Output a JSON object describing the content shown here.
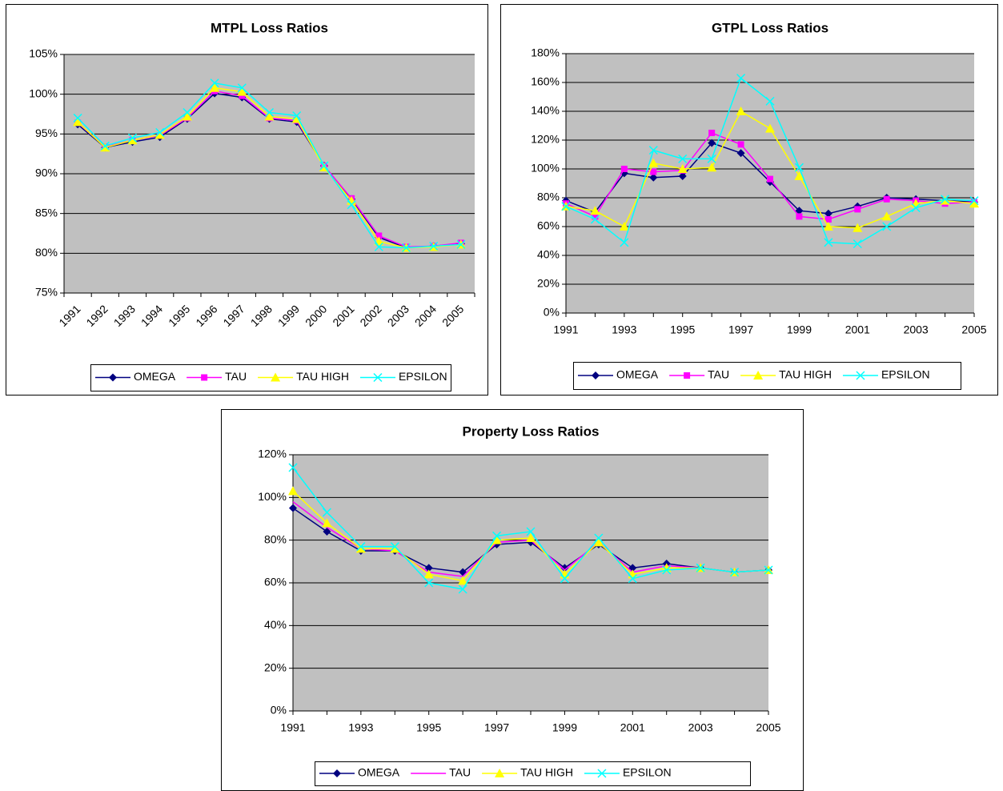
{
  "chart_data": [
    {
      "type": "line",
      "title": "MTPL Loss Ratios",
      "categories": [
        "1991",
        "1992",
        "1993",
        "1994",
        "1995",
        "1996",
        "1997",
        "1998",
        "1999",
        "2000",
        "2001",
        "2002",
        "2003",
        "2004",
        "2005"
      ],
      "ylim": [
        75,
        105
      ],
      "yticks": [
        {
          "value": 75,
          "label": "75%"
        },
        {
          "value": 80,
          "label": "80%"
        },
        {
          "value": 85,
          "label": "85%"
        },
        {
          "value": 90,
          "label": "90%"
        },
        {
          "value": 95,
          "label": "95%"
        },
        {
          "value": 100,
          "label": "100%"
        },
        {
          "value": 105,
          "label": "105%"
        }
      ],
      "grid": true,
      "legend": "bottom",
      "series": [
        {
          "name": "OMEGA",
          "color": "#000080",
          "marker": "diamond",
          "values": [
            96.2,
            93.3,
            94.0,
            94.6,
            96.9,
            100.1,
            99.6,
            96.9,
            96.5,
            91.0,
            86.8,
            82.0,
            80.7,
            80.9,
            81.2
          ]
        },
        {
          "name": "TAU",
          "color": "#ff00ff",
          "marker": "square",
          "values": [
            96.4,
            93.4,
            94.2,
            94.8,
            97.0,
            100.4,
            99.8,
            97.0,
            96.7,
            91.0,
            86.9,
            82.2,
            80.8,
            80.9,
            81.3
          ]
        },
        {
          "name": "TAU HIGH",
          "color": "#ffff00",
          "marker": "triangle",
          "values": [
            96.5,
            93.3,
            94.2,
            94.9,
            97.2,
            100.8,
            100.3,
            97.2,
            96.9,
            90.8,
            86.6,
            81.5,
            80.7,
            80.8,
            81.1
          ]
        },
        {
          "name": "EPSILON",
          "color": "#00ffff",
          "marker": "x",
          "values": [
            97.0,
            93.5,
            94.5,
            95.2,
            97.7,
            101.4,
            100.8,
            97.7,
            97.3,
            91.0,
            86.1,
            80.8,
            80.7,
            80.9,
            81.1
          ]
        }
      ]
    },
    {
      "type": "line",
      "title": "GTPL Loss Ratios",
      "x": [
        1991,
        1992,
        1993,
        1994,
        1995,
        1996,
        1997,
        1998,
        1999,
        2000,
        2001,
        2002,
        2003,
        2004,
        2005
      ],
      "xlim": [
        1991,
        2005
      ],
      "xticks": [
        1991,
        1993,
        1995,
        1997,
        1999,
        2001,
        2003,
        2005
      ],
      "ylim": [
        0,
        180
      ],
      "yticks": [
        {
          "value": 0,
          "label": "0%"
        },
        {
          "value": 20,
          "label": "20%"
        },
        {
          "value": 40,
          "label": "40%"
        },
        {
          "value": 60,
          "label": "60%"
        },
        {
          "value": 80,
          "label": "80%"
        },
        {
          "value": 100,
          "label": "100%"
        },
        {
          "value": 120,
          "label": "120%"
        },
        {
          "value": 140,
          "label": "140%"
        },
        {
          "value": 160,
          "label": "160%"
        },
        {
          "value": 180,
          "label": "180%"
        }
      ],
      "grid": true,
      "legend": "bottom",
      "series": [
        {
          "name": "OMEGA",
          "color": "#000080",
          "marker": "diamond",
          "values": [
            78,
            70,
            97,
            94,
            95,
            118,
            111,
            91,
            71,
            69,
            74,
            80,
            79,
            78,
            77
          ]
        },
        {
          "name": "TAU",
          "color": "#ff00ff",
          "marker": "square",
          "values": [
            76,
            67,
            100,
            98,
            99,
            125,
            117,
            93,
            67,
            65,
            72,
            79,
            78,
            76,
            77
          ]
        },
        {
          "name": "TAU HIGH",
          "color": "#ffff00",
          "marker": "triangle",
          "values": [
            74,
            71,
            60,
            104,
            100,
            101,
            140,
            128,
            95,
            60,
            59,
            67,
            76,
            78,
            76
          ]
        },
        {
          "name": "EPSILON",
          "color": "#00ffff",
          "marker": "x",
          "values": [
            74,
            65,
            49,
            113,
            107,
            107,
            163,
            147,
            101,
            49,
            48,
            60,
            73,
            79,
            78
          ]
        }
      ]
    },
    {
      "type": "line",
      "title": "Property Loss Ratios",
      "x": [
        1991,
        1992,
        1993,
        1994,
        1995,
        1996,
        1997,
        1998,
        1999,
        2000,
        2001,
        2002,
        2003,
        2004,
        2005
      ],
      "xlim": [
        1991,
        2005
      ],
      "xticks": [
        1991,
        1993,
        1995,
        1997,
        1999,
        2001,
        2003,
        2005
      ],
      "ylim": [
        0,
        120
      ],
      "yticks": [
        {
          "value": 0,
          "label": "0%"
        },
        {
          "value": 20,
          "label": "20%"
        },
        {
          "value": 40,
          "label": "40%"
        },
        {
          "value": 60,
          "label": "60%"
        },
        {
          "value": 80,
          "label": "80%"
        },
        {
          "value": 100,
          "label": "100%"
        },
        {
          "value": 120,
          "label": "120%"
        }
      ],
      "grid": true,
      "legend": "bottom",
      "series": [
        {
          "name": "OMEGA",
          "color": "#000080",
          "marker": "diamond",
          "values": [
            95,
            84,
            75,
            75,
            67,
            65,
            78,
            79,
            67,
            78,
            67,
            69,
            67,
            65,
            66
          ]
        },
        {
          "name": "TAU",
          "color": "#ff00ff",
          "marker": "none",
          "values": [
            98,
            86,
            76,
            75,
            65,
            63,
            79,
            80,
            66,
            79,
            65,
            68,
            67,
            65,
            66
          ]
        },
        {
          "name": "TAU HIGH",
          "color": "#ffff00",
          "marker": "triangle",
          "values": [
            103,
            88,
            76,
            76,
            64,
            61,
            80,
            81,
            64,
            79,
            64,
            67,
            67,
            65,
            66
          ]
        },
        {
          "name": "EPSILON",
          "color": "#00ffff",
          "marker": "x",
          "values": [
            114,
            93,
            77,
            77,
            60,
            57,
            82,
            84,
            62,
            81,
            62,
            66,
            67,
            65,
            66
          ]
        }
      ]
    }
  ]
}
